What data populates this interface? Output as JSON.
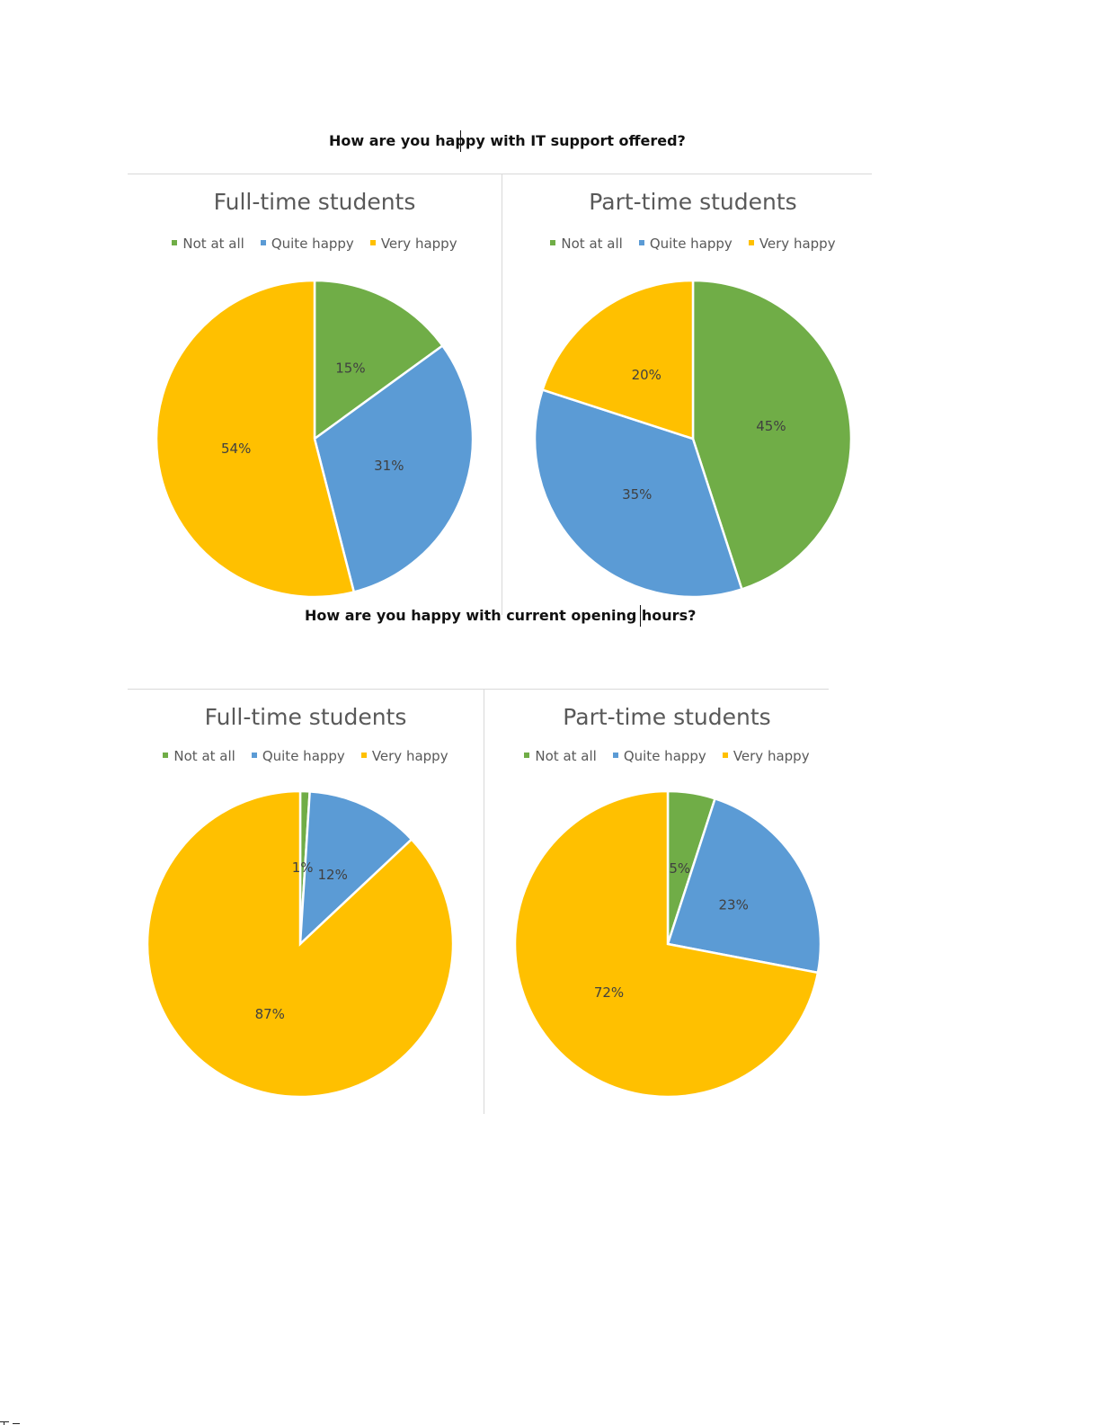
{
  "colors": {
    "not_at_all": "#70ad47",
    "quite_happy": "#5b9bd5",
    "very_happy": "#ffc000"
  },
  "questions": [
    {
      "title": "How are you happy with IT support offered?"
    },
    {
      "title": "How are you happy with current opening hours?"
    }
  ],
  "chart_data": [
    {
      "type": "pie",
      "title": "Full-time students",
      "question": "How are you happy with IT support offered?",
      "categories": [
        "Not at all",
        "Quite happy",
        "Very happy"
      ],
      "values": [
        15,
        31,
        54
      ],
      "labels": [
        "15%",
        "31%",
        "54%"
      ],
      "legend": "top"
    },
    {
      "type": "pie",
      "title": "Part-time students",
      "question": "How are you happy with IT support offered?",
      "categories": [
        "Not at all",
        "Quite happy",
        "Very happy"
      ],
      "values": [
        45,
        35,
        20
      ],
      "labels": [
        "45%",
        "35%",
        "20%"
      ],
      "legend": "top"
    },
    {
      "type": "pie",
      "title": "Full-time students",
      "question": "How are you happy with current opening hours?",
      "categories": [
        "Not at all",
        "Quite happy",
        "Very happy"
      ],
      "values": [
        1,
        12,
        87
      ],
      "labels": [
        "1%",
        "12%",
        "87%"
      ],
      "legend": "top"
    },
    {
      "type": "pie",
      "title": "Part-time students",
      "question": "How are you happy with current opening hours?",
      "categories": [
        "Not at all",
        "Quite happy",
        "Very happy"
      ],
      "values": [
        5,
        23,
        72
      ],
      "labels": [
        "5%",
        "23%",
        "72%"
      ],
      "legend": "top"
    }
  ]
}
